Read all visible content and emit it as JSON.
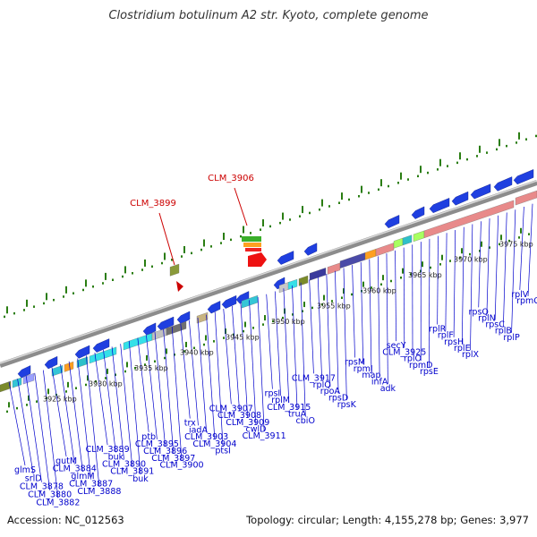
{
  "title": "Clostridium botulinum A2 str. Kyoto, complete genome",
  "accession": "Accession: NC_012563",
  "summary": "Topology: circular; Length: 4,155,278 bp; Genes: 3,977",
  "colors": {
    "gene_label": "#0000cc",
    "highlight_label": "#cc0000",
    "backbone": "#8c8c8c",
    "gc_dot": "#2a7d12",
    "forward_strand": "#1f3fe0",
    "reverse_strand": "#1f3fe0",
    "rrna_block": "#e88a8a"
  },
  "kbp_labels": [
    "3925 kbp",
    "3930 kbp",
    "3935 kbp",
    "3940 kbp",
    "3945 kbp",
    "3950 kbp",
    "3955 kbp",
    "3960 kbp",
    "3965 kbp",
    "3970 kbp",
    "3975 kbp"
  ],
  "highlighted_genes": [
    "CLM_3899",
    "CLM_3906"
  ],
  "gene_labels": [
    "glmS",
    "srlD",
    "CLM_3878",
    "CLM_3880",
    "CLM_3882",
    "gutM",
    "CLM_3884",
    "glmM",
    "CLM_3887",
    "CLM_3888",
    "CLM_3889",
    "buk",
    "CLM_3890",
    "CLM_3891",
    "buk",
    "ptb",
    "CLM_3895",
    "CLM_3896",
    "CLM_3897",
    "CLM_3900",
    "trx",
    "iadA",
    "CLM_3903",
    "CLM_3904",
    "ptsI",
    "CLM_3907",
    "CLM_3908",
    "CLM_3909",
    "cwlD",
    "CLM_3911",
    "rpsI",
    "rplM",
    "CLM_3915",
    "truA",
    "cbiO",
    "CLM_3917",
    "rplQ",
    "rpoA",
    "rpsD",
    "rpsK",
    "rpsM",
    "rpmJ",
    "map",
    "infA",
    "adk",
    "secY",
    "CLM_3925",
    "rplO",
    "rpmD",
    "rpsE",
    "rplR",
    "rplF",
    "rpsH",
    "rplE",
    "rplX",
    "rpsQ",
    "rplN",
    "rpsC",
    "rplB",
    "rplP",
    "rplV",
    "rpmC"
  ]
}
